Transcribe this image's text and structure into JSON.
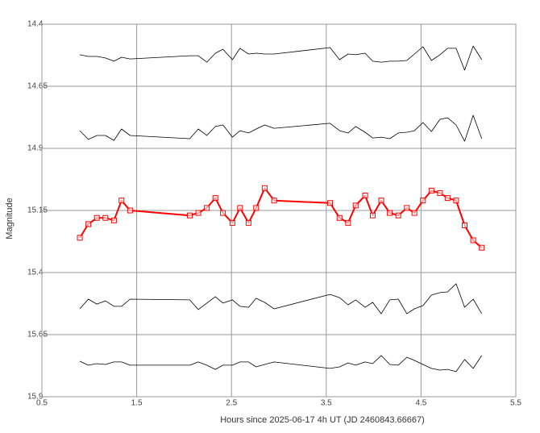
{
  "chart_data": {
    "type": "line",
    "x_label": "Hours since 2025-06-17 4h UT (JD 2460843.66667)",
    "y_label": "Magnitude",
    "xlim": [
      0.5,
      5.5
    ],
    "xticks": [
      0.5,
      1.5,
      2.5,
      3.5,
      4.5,
      5.5
    ],
    "ylim": [
      15.9,
      14.4
    ],
    "yticks": [
      14.4,
      14.65,
      14.9,
      15.15,
      15.4,
      15.65,
      15.9
    ],
    "grid": true,
    "x": [
      0.9,
      0.99,
      1.08,
      1.17,
      1.26,
      1.34,
      1.43,
      2.06,
      2.15,
      2.24,
      2.33,
      2.41,
      2.51,
      2.59,
      2.68,
      2.76,
      2.85,
      2.95,
      3.54,
      3.64,
      3.73,
      3.81,
      3.91,
      3.99,
      4.08,
      4.17,
      4.26,
      4.35,
      4.43,
      4.52,
      4.61,
      4.7,
      4.78,
      4.87,
      4.96,
      5.05,
      5.14
    ],
    "series": [
      {
        "color": "#000000",
        "markers": false,
        "values": [
          14.523,
          14.53,
          14.53,
          14.536,
          14.549,
          14.533,
          14.54,
          14.527,
          14.527,
          14.553,
          14.517,
          14.501,
          14.543,
          14.497,
          14.52,
          14.517,
          14.52,
          14.52,
          14.494,
          14.543,
          14.52,
          14.523,
          14.517,
          14.549,
          14.553,
          14.549,
          14.549,
          14.546,
          14.52,
          14.491,
          14.546,
          14.523,
          14.497,
          14.497,
          14.585,
          14.488,
          14.543
        ]
      },
      {
        "color": "#000000",
        "markers": false,
        "values": [
          14.829,
          14.864,
          14.848,
          14.848,
          14.868,
          14.822,
          14.848,
          14.861,
          14.822,
          14.848,
          14.812,
          14.806,
          14.855,
          14.829,
          14.838,
          14.822,
          14.806,
          14.819,
          14.799,
          14.829,
          14.838,
          14.812,
          14.835,
          14.858,
          14.855,
          14.861,
          14.838,
          14.835,
          14.829,
          14.796,
          14.832,
          14.783,
          14.777,
          14.806,
          14.871,
          14.767,
          14.861
        ]
      },
      {
        "color": "#ff0000",
        "markers": true,
        "values": [
          15.26,
          15.205,
          15.18,
          15.18,
          15.19,
          15.11,
          15.15,
          15.17,
          15.16,
          15.14,
          15.1,
          15.16,
          15.2,
          15.14,
          15.2,
          15.14,
          15.06,
          15.11,
          15.12,
          15.18,
          15.2,
          15.13,
          15.09,
          15.17,
          15.11,
          15.16,
          15.17,
          15.14,
          15.16,
          15.11,
          15.07,
          15.08,
          15.1,
          15.11,
          15.21,
          15.27,
          15.3
        ]
      },
      {
        "color": "#000000",
        "markers": false,
        "values": [
          15.546,
          15.507,
          15.527,
          15.514,
          15.536,
          15.536,
          15.507,
          15.51,
          15.549,
          15.523,
          15.497,
          15.523,
          15.51,
          15.536,
          15.54,
          15.504,
          15.52,
          15.546,
          15.488,
          15.501,
          15.53,
          15.51,
          15.54,
          15.52,
          15.566,
          15.51,
          15.507,
          15.566,
          15.546,
          15.533,
          15.491,
          15.481,
          15.478,
          15.445,
          15.54,
          15.507,
          15.566
        ]
      },
      {
        "color": "#000000",
        "markers": false,
        "values": [
          15.757,
          15.773,
          15.767,
          15.77,
          15.76,
          15.76,
          15.773,
          15.773,
          15.76,
          15.773,
          15.79,
          15.773,
          15.773,
          15.76,
          15.76,
          15.78,
          15.77,
          15.76,
          15.786,
          15.78,
          15.764,
          15.773,
          15.76,
          15.767,
          15.734,
          15.77,
          15.773,
          15.741,
          15.754,
          15.77,
          15.786,
          15.793,
          15.79,
          15.799,
          15.75,
          15.786,
          15.734
        ]
      }
    ]
  }
}
